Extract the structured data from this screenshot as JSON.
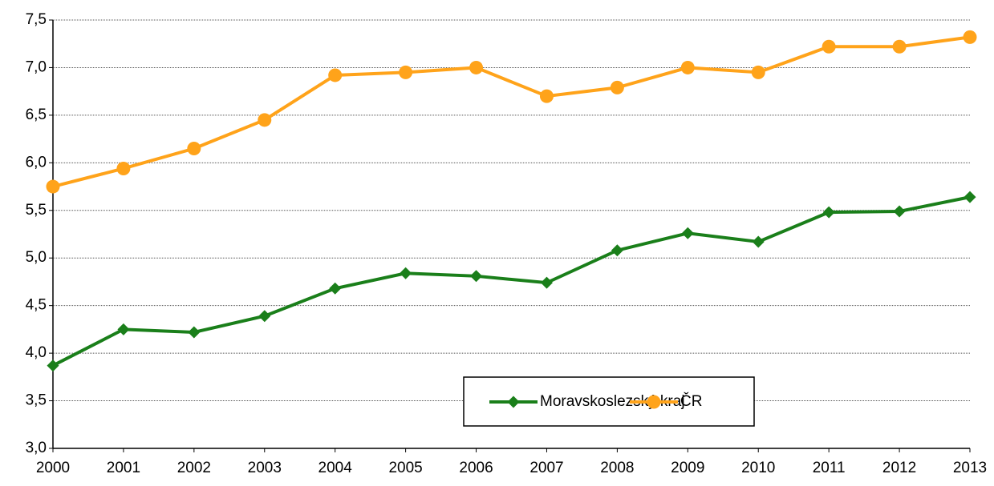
{
  "chart_data": {
    "type": "line",
    "categories": [
      "2000",
      "2001",
      "2002",
      "2003",
      "2004",
      "2005",
      "2006",
      "2007",
      "2008",
      "2009",
      "2010",
      "2011",
      "2012",
      "2013"
    ],
    "series": [
      {
        "name": "Moravskoslezský kraj",
        "color": "#1a7f1a",
        "marker": "diamond",
        "values": [
          3.87,
          4.25,
          4.22,
          4.39,
          4.68,
          4.84,
          4.81,
          4.74,
          5.08,
          5.26,
          5.17,
          5.48,
          5.49,
          5.64
        ]
      },
      {
        "name": "ČR",
        "color": "#ffa31a",
        "marker": "circle",
        "values": [
          5.75,
          5.94,
          6.15,
          6.45,
          6.92,
          6.95,
          7.0,
          6.7,
          6.79,
          7.0,
          6.95,
          7.22,
          7.22,
          7.32
        ]
      }
    ],
    "ylim": [
      3,
      7.5
    ],
    "yticks": [
      {
        "value": 3,
        "label": "3,0"
      },
      {
        "value": 3.5,
        "label": "3,5"
      },
      {
        "value": 4,
        "label": "4,0"
      },
      {
        "value": 4.5,
        "label": "4,5"
      },
      {
        "value": 5,
        "label": "5,0"
      },
      {
        "value": 5.5,
        "label": "5,5"
      },
      {
        "value": 6,
        "label": "6,0"
      },
      {
        "value": 6.5,
        "label": "6,5"
      },
      {
        "value": 7,
        "label": "7,0"
      },
      {
        "value": 7.5,
        "label": "7,5"
      }
    ],
    "grid": true
  }
}
